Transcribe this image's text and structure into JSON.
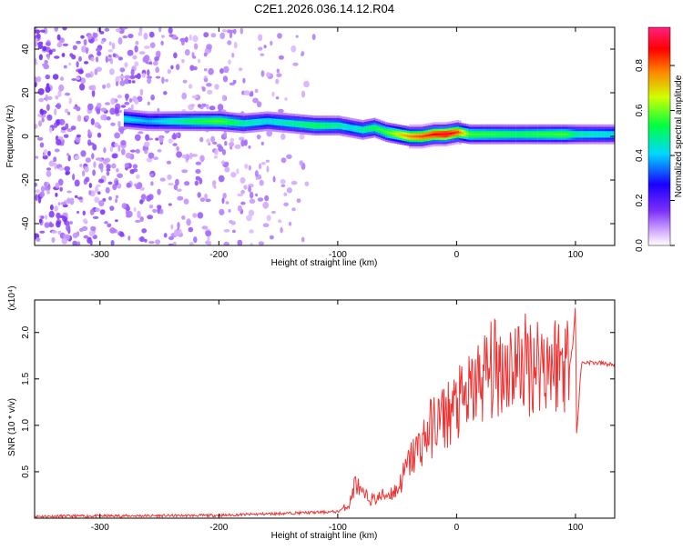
{
  "title": "C2E1.2026.036.14.12.R04",
  "chart_data": [
    {
      "type": "heatmap",
      "xlabel": "Height of straight line (km)",
      "ylabel": "Frequency (Hz)",
      "xlim": [
        -355,
        133
      ],
      "ylim": [
        -50,
        50
      ],
      "x_ticks": [
        -300,
        -200,
        -100,
        0,
        100
      ],
      "y_ticks": [
        -40,
        -20,
        0,
        20,
        40
      ],
      "colorbar": {
        "label": "Normalized spectral amplitude",
        "range": [
          0,
          0.97
        ],
        "ticks": [
          0.0,
          0.2,
          0.4,
          0.6,
          0.8
        ]
      },
      "ridge": {
        "x": [
          -280,
          -260,
          -220,
          -200,
          -180,
          -160,
          -140,
          -120,
          -100,
          -90,
          -80,
          -70,
          -60,
          -50,
          -40,
          -30,
          -20,
          -10,
          0,
          10,
          50,
          90,
          100,
          133
        ],
        "y": [
          8,
          7,
          7,
          7,
          6,
          7,
          6,
          5,
          5,
          4,
          3,
          4,
          2,
          1,
          0,
          0,
          1,
          1,
          2,
          1,
          1,
          1,
          1,
          1
        ],
        "amplitude": [
          0.45,
          0.4,
          0.55,
          0.6,
          0.5,
          0.45,
          0.5,
          0.55,
          0.5,
          0.45,
          0.5,
          0.55,
          0.6,
          0.7,
          0.8,
          0.85,
          0.9,
          0.95,
          0.85,
          0.6,
          0.55,
          0.6,
          0.5,
          0.45
        ]
      },
      "noise_region_x": [
        -355,
        -120
      ]
    },
    {
      "type": "line",
      "xlabel": "Height of straight line (km)",
      "ylabel": "SNR (10 * v/v)",
      "exponent": "(x10⁴)",
      "xlim": [
        -355,
        133
      ],
      "ylim": [
        0,
        23500
      ],
      "x_ticks": [
        -300,
        -200,
        -100,
        0,
        100
      ],
      "y_ticks": [
        0.5,
        1.0,
        1.5,
        2.0
      ],
      "series": [
        {
          "color": "#ee3333",
          "x": [
            -355,
            -200,
            -100,
            -90,
            -85,
            -80,
            -70,
            -60,
            -50,
            -40,
            -30,
            -20,
            -10,
            0,
            10,
            20,
            30,
            40,
            50,
            60,
            70,
            80,
            90,
            95,
            98,
            100,
            101,
            105,
            110,
            120,
            133
          ],
          "values": [
            200,
            300,
            700,
            1500,
            4000,
            2500,
            2000,
            2500,
            3000,
            6000,
            8000,
            10000,
            11000,
            12000,
            13000,
            15000,
            16000,
            16500,
            16500,
            16700,
            17000,
            16800,
            17000,
            16500,
            19000,
            23000,
            9000,
            16700,
            16800,
            16700,
            16500
          ]
        }
      ]
    }
  ]
}
